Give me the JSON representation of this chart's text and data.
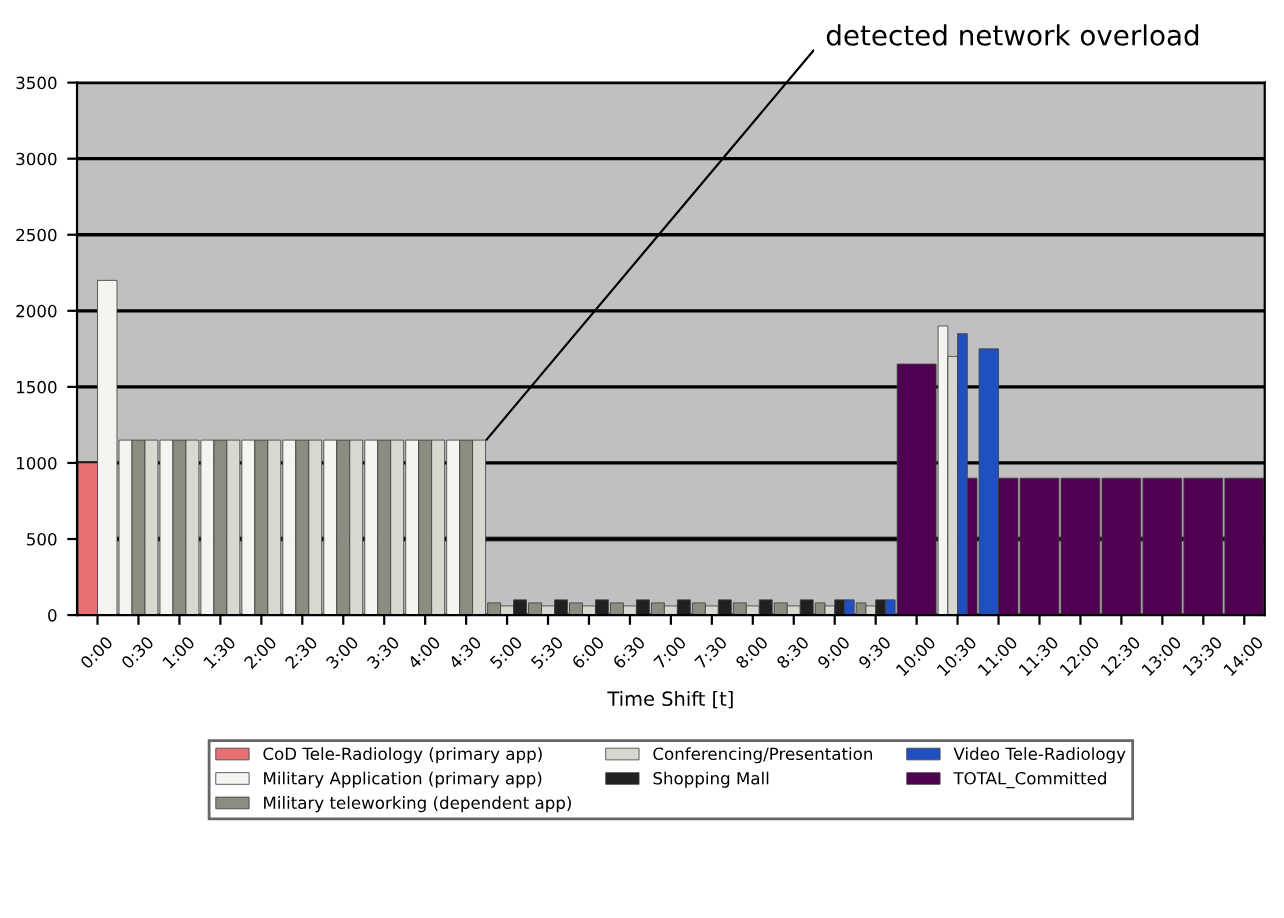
{
  "chart_data": {
    "type": "bar",
    "categories": [
      "0:00",
      "0:30",
      "1:00",
      "1:30",
      "2:00",
      "2:30",
      "3:00",
      "3:30",
      "4:00",
      "4:30",
      "5:00",
      "5:30",
      "6:00",
      "6:30",
      "7:00",
      "7:30",
      "8:00",
      "8:30",
      "9:00",
      "9:30",
      "10:00",
      "10:30",
      "11:00",
      "11:30",
      "12:00",
      "12:30",
      "13:00",
      "13:30",
      "14:00"
    ],
    "series": [
      {
        "name": "CoD Tele-Radiology (primary app)",
        "color": "#e87070",
        "values": [
          1000,
          null,
          null,
          null,
          null,
          null,
          null,
          null,
          null,
          null,
          null,
          null,
          null,
          null,
          null,
          null,
          null,
          null,
          null,
          null,
          null,
          null,
          null,
          null,
          null,
          null,
          null,
          null,
          null
        ]
      },
      {
        "name": "Military Application (primary app)",
        "color": "#f4f4f0",
        "values": [
          2200,
          1150,
          1150,
          1150,
          1150,
          1150,
          1150,
          1150,
          1150,
          1150,
          null,
          null,
          null,
          null,
          null,
          null,
          null,
          null,
          null,
          null,
          null,
          1900,
          null,
          null,
          null,
          null,
          null,
          null,
          null
        ]
      },
      {
        "name": "Military teleworking (dependent app)",
        "color": "#8c8c80",
        "values": [
          null,
          1150,
          1150,
          1150,
          1150,
          1150,
          1150,
          1150,
          1150,
          1150,
          80,
          80,
          80,
          80,
          80,
          80,
          80,
          80,
          80,
          80,
          null,
          null,
          null,
          null,
          null,
          null,
          null,
          null,
          null
        ]
      },
      {
        "name": "Conferencing/Presentation",
        "color": "#d8d8d0",
        "values": [
          null,
          1150,
          1150,
          1150,
          1150,
          1150,
          1150,
          1150,
          1150,
          1150,
          60,
          60,
          60,
          60,
          60,
          60,
          60,
          60,
          60,
          60,
          null,
          1700,
          null,
          null,
          null,
          null,
          null,
          null,
          null
        ]
      },
      {
        "name": "Shopping Mall",
        "color": "#202020",
        "values": [
          null,
          null,
          null,
          null,
          null,
          null,
          null,
          null,
          null,
          null,
          100,
          100,
          100,
          100,
          100,
          100,
          100,
          100,
          100,
          100,
          null,
          null,
          null,
          null,
          null,
          null,
          null,
          null,
          null
        ]
      },
      {
        "name": "Video Tele-Radiology",
        "color": "#2050c0",
        "values": [
          null,
          null,
          null,
          null,
          null,
          null,
          null,
          null,
          null,
          null,
          null,
          null,
          null,
          null,
          null,
          null,
          null,
          null,
          100,
          100,
          null,
          1850,
          1750,
          null,
          null,
          null,
          null,
          null,
          null
        ]
      },
      {
        "name": "TOTAL_Committed",
        "color": "#500050",
        "values": [
          null,
          null,
          null,
          null,
          null,
          null,
          null,
          null,
          null,
          null,
          null,
          null,
          null,
          null,
          null,
          null,
          null,
          null,
          null,
          null,
          1650,
          900,
          900,
          900,
          900,
          900,
          900,
          900,
          900
        ]
      }
    ],
    "xlabel": "Time Shift [t]",
    "ylim": [
      0,
      3500
    ],
    "yticks": [
      0,
      500,
      1000,
      1500,
      2000,
      2500,
      3000,
      3500
    ],
    "grid": "y",
    "legend": "bottom",
    "ref_lines": [
      {
        "axis": "y",
        "value": 500,
        "color": "#707070"
      }
    ],
    "annotations": [
      "detected network overload"
    ]
  }
}
